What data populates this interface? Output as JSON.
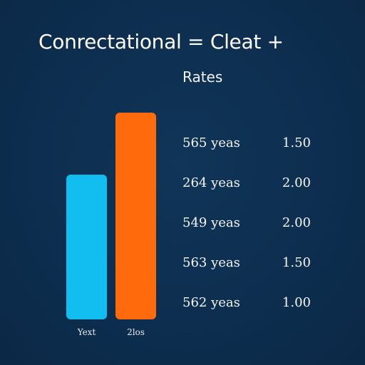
{
  "title": "Conrectational = Cleat +",
  "rates": {
    "heading": "Rates",
    "rows": [
      {
        "years": "565 yeas",
        "value": "1.50"
      },
      {
        "years": "264 yeas",
        "value": "2.00"
      },
      {
        "years": "549 yeas",
        "value": "2.00"
      },
      {
        "years": "563 yeas",
        "value": "1.50"
      },
      {
        "years": "562 yeas",
        "value": "1.00"
      }
    ]
  },
  "chart_data": {
    "type": "bar",
    "categories": [
      "Yext",
      "2los"
    ],
    "values": [
      0.7,
      1.0
    ],
    "ylim": [
      0,
      1
    ],
    "grid": false,
    "colors": [
      "#12bdf0",
      "#ff6a0d"
    ]
  }
}
